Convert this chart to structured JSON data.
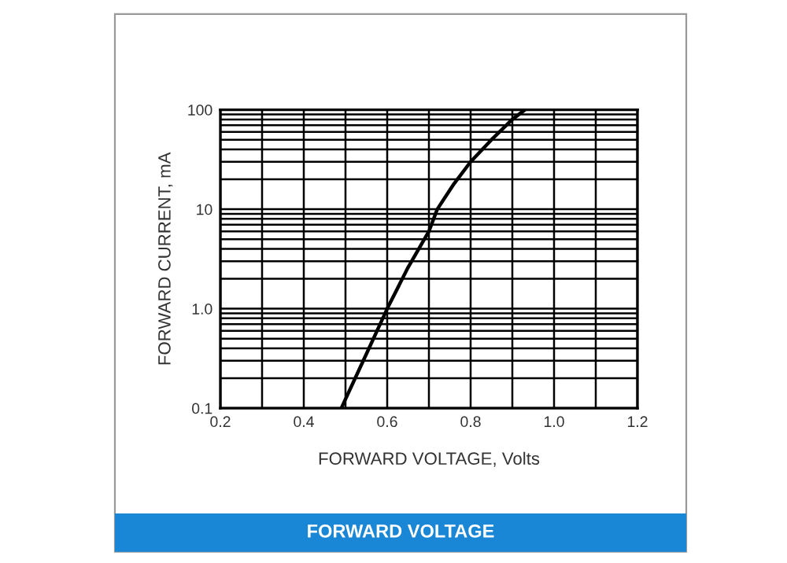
{
  "chart_data": {
    "type": "line",
    "title": "FORWARD VOLTAGE",
    "xlabel": "FORWARD VOLTAGE, Volts",
    "ylabel": "FORWARD CURRENT, mA",
    "series": [
      {
        "color": "#000000",
        "x": [
          0.49,
          0.55,
          0.6,
          0.65,
          0.7,
          0.72,
          0.76,
          0.8,
          0.85,
          0.9,
          0.93
        ],
        "values": [
          0.1,
          0.35,
          1.0,
          2.6,
          6,
          10,
          18,
          30,
          50,
          80,
          100
        ]
      }
    ],
    "log": "y",
    "xlim": [
      0.2,
      1.2
    ],
    "ylim": [
      0.1,
      100
    ],
    "xticks": [
      0.2,
      {
        "value": 0.3,
        "label": null
      },
      0.4,
      {
        "value": 0.5,
        "label": null
      },
      0.6,
      {
        "value": 0.7,
        "label": null
      },
      0.8,
      {
        "value": 0.9,
        "label": null
      },
      {
        "value": 1.0,
        "label": "1.0"
      },
      {
        "value": 1.1,
        "label": null
      },
      1.2
    ],
    "yticks": [
      0.1,
      {
        "value": 1,
        "label": "1.0"
      },
      10,
      100
    ],
    "grid": true,
    "marker": "none",
    "line_style": "solid"
  }
}
